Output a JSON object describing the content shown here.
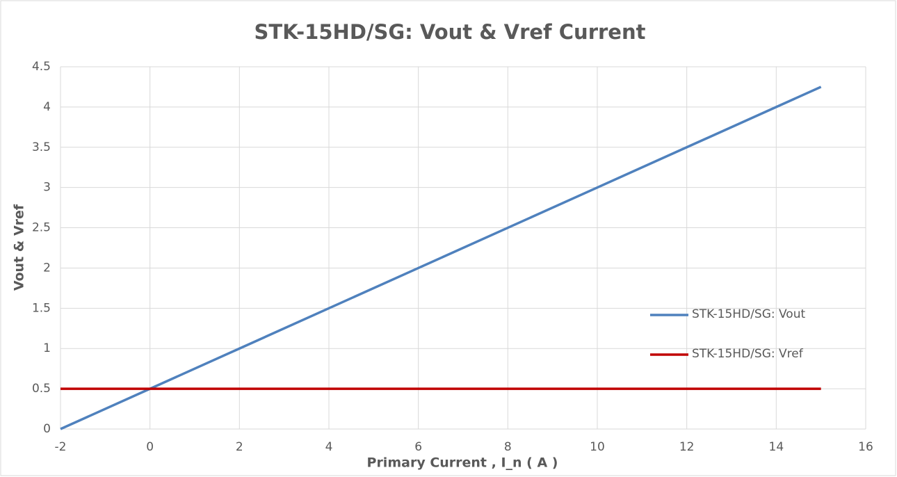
{
  "chart_data": {
    "type": "line",
    "title": "STK-15HD/SG: Vout & Vref Current",
    "x_label": "Primary Current , I_n ( A )",
    "y_label": "Vout & Vref",
    "x": [
      -2,
      0,
      2,
      4,
      6,
      8,
      10,
      12,
      14,
      15
    ],
    "series": [
      {
        "name": "STK-15HD/SG: Vout",
        "color": "#4f81bd",
        "values": [
          0,
          0.5,
          1,
          1.5,
          2,
          2.5,
          3,
          3.5,
          4,
          4.25
        ]
      },
      {
        "name": "STK-15HD/SG: Vref",
        "color": "#c00000",
        "values": [
          0.5,
          0.5,
          0.5,
          0.5,
          0.5,
          0.5,
          0.5,
          0.5,
          0.5,
          0.5
        ]
      }
    ],
    "xlim": [
      -2,
      16
    ],
    "xticks": [
      -2,
      0,
      2,
      4,
      6,
      8,
      10,
      12,
      14,
      16
    ],
    "ylim": [
      0,
      4.5
    ],
    "yticks": [
      0,
      0.5,
      1,
      1.5,
      2,
      2.5,
      3,
      3.5,
      4,
      4.5
    ],
    "grid": true,
    "legend": "right"
  }
}
